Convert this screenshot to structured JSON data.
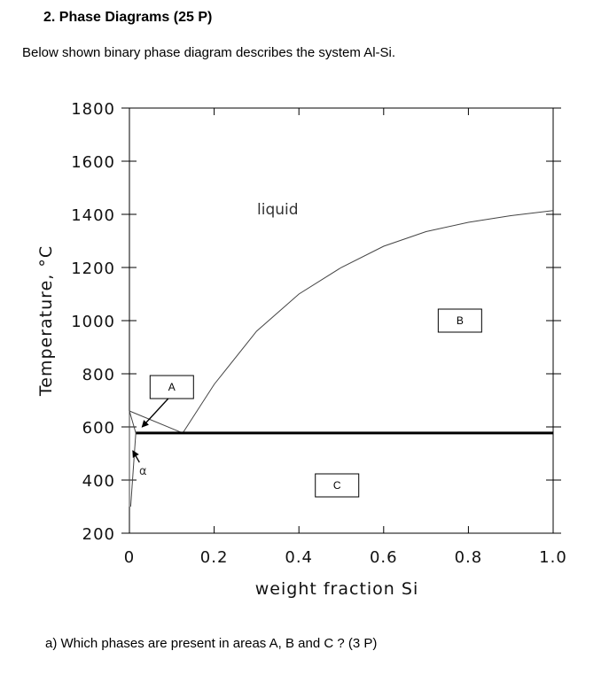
{
  "document": {
    "heading": "2.  Phase Diagrams (25 P)",
    "intro": "Below shown binary phase diagram describes the system Al-Si.",
    "question": "a)  Which phases are present in areas A, B and C ? (3 P)"
  },
  "chart_data": {
    "type": "line",
    "title": "",
    "xlabel": "weight fraction Si",
    "ylabel": "Temperature, °C",
    "xlim": [
      0,
      1.0
    ],
    "ylim": [
      200,
      1800
    ],
    "x_ticks": [
      "0",
      "0.2",
      "0.4",
      "0.6",
      "0.8",
      "1.0"
    ],
    "x_tick_values": [
      0,
      0.2,
      0.4,
      0.6,
      0.8,
      1.0
    ],
    "y_ticks": [
      "1800",
      "1600",
      "1400",
      "1200",
      "1000",
      "800",
      "600",
      "400",
      "200"
    ],
    "y_tick_values": [
      1800,
      1600,
      1400,
      1200,
      1000,
      800,
      600,
      400,
      200
    ],
    "grid": false,
    "series": [
      {
        "points": [
          [
            0,
            660
          ],
          [
            0.126,
            577
          ]
        ]
      },
      {
        "points": [
          [
            0.126,
            577
          ],
          [
            0.2,
            760
          ],
          [
            0.3,
            960
          ],
          [
            0.4,
            1100
          ],
          [
            0.5,
            1200
          ],
          [
            0.6,
            1280
          ],
          [
            0.7,
            1335
          ],
          [
            0.8,
            1370
          ],
          [
            0.9,
            1395
          ],
          [
            1.0,
            1414
          ]
        ]
      },
      {
        "points": [
          [
            0.015,
            577
          ],
          [
            1.0,
            577
          ]
        ]
      },
      {
        "points": [
          [
            0,
            660
          ],
          [
            0.015,
            577
          ]
        ]
      },
      {
        "points": [
          [
            0.015,
            577
          ],
          [
            0.003,
            300
          ]
        ]
      },
      {
        "points": [
          [
            0,
            660
          ],
          [
            0,
            300
          ]
        ]
      }
    ],
    "annotations": [
      {
        "text": "liquid",
        "x": 0.35,
        "y": 1420
      },
      {
        "text": "A",
        "x": 0.1,
        "y": 750,
        "boxed": true
      },
      {
        "text": "B",
        "x": 0.78,
        "y": 1000,
        "boxed": true
      },
      {
        "text": "C",
        "x": 0.49,
        "y": 380,
        "boxed": true
      },
      {
        "text": "α",
        "x": 0.032,
        "y": 440
      }
    ],
    "arrows": [
      {
        "from_label": "A",
        "to": [
          0.03,
          600
        ]
      },
      {
        "from_label": "α",
        "to": [
          0.008,
          510
        ]
      }
    ]
  }
}
